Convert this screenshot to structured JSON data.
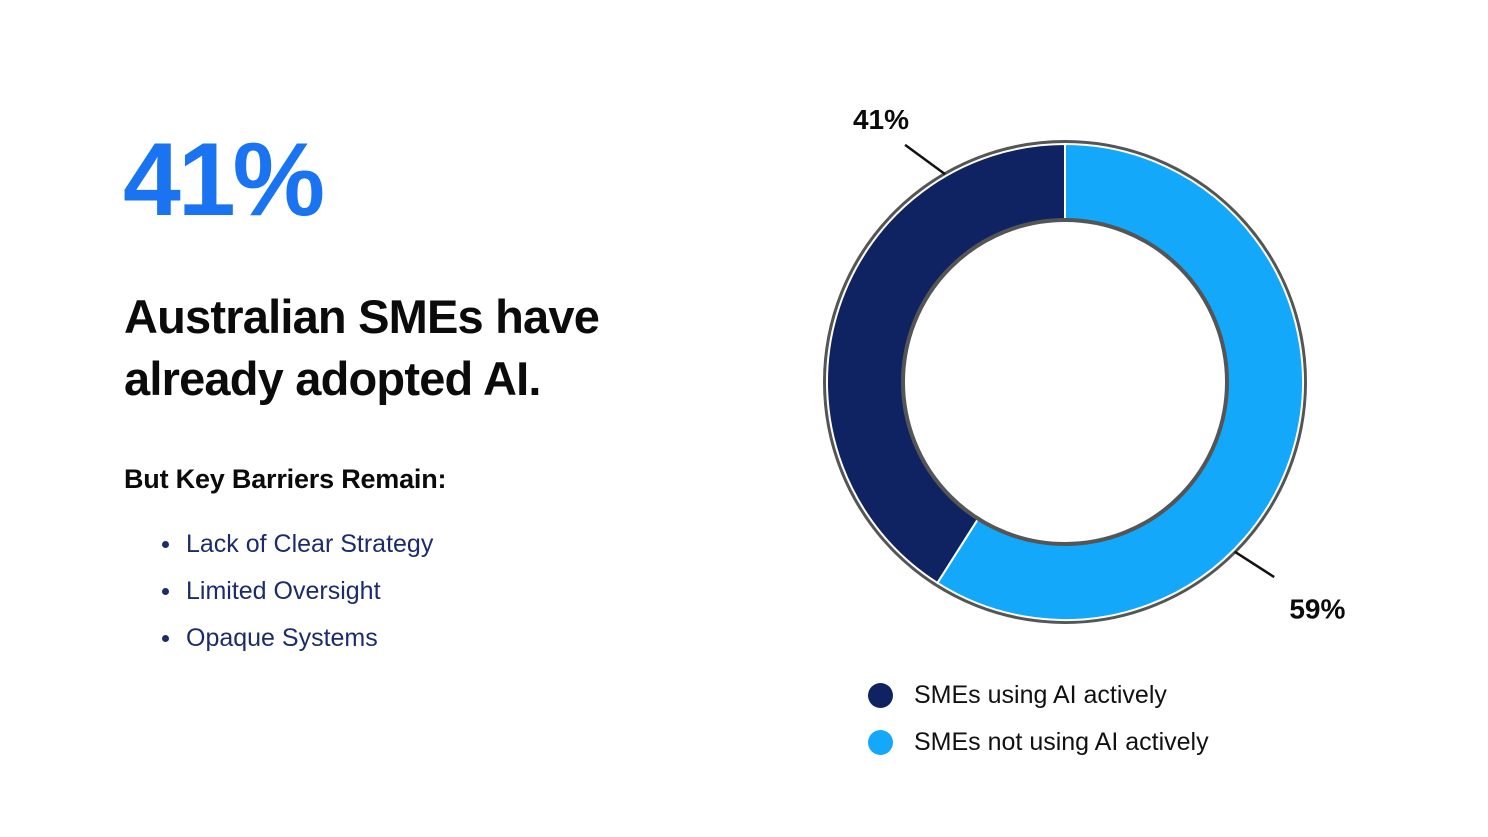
{
  "headline_stat": "41%",
  "headline_text": "Australian SMEs have already adopted AI.",
  "barriers": {
    "title": "But Key Barriers Remain:",
    "items": [
      "Lack of Clear Strategy",
      "Limited Oversight",
      "Opaque Systems"
    ]
  },
  "colors": {
    "accent": "#1a73f0",
    "series_dark": "#0f2262",
    "series_light": "#14a8fb",
    "ring_outline": "#555555",
    "list_text": "#1c2c6b"
  },
  "chart_data": {
    "type": "pie",
    "variant": "donut",
    "categories": [
      "SMEs using AI actively",
      "SMEs not using AI actively"
    ],
    "values": [
      41,
      59
    ],
    "labels": [
      "41%",
      "59%"
    ],
    "colors": [
      "#0f2262",
      "#14a8fb"
    ],
    "legend_position": "bottom"
  }
}
